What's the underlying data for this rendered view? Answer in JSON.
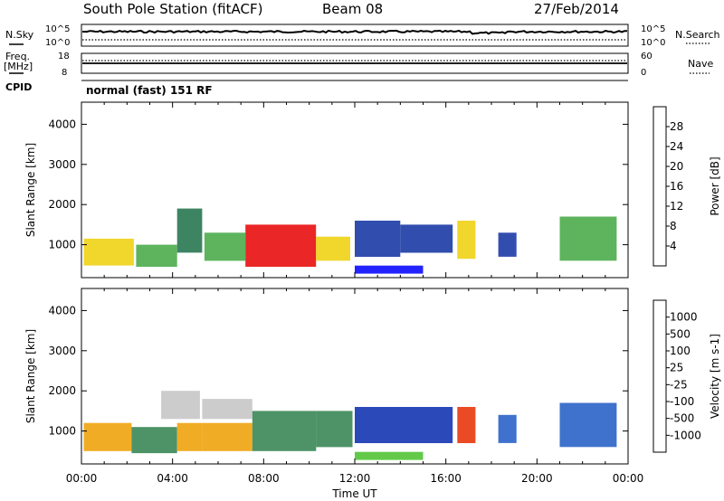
{
  "header": {
    "station": "South Pole Station (fitACF)",
    "beam": "Beam 08",
    "date": "27/Feb/2014"
  },
  "strips": {
    "nsky_label": "N.Sky",
    "nsky_ticks": [
      "10^5",
      "10^0"
    ],
    "nsearch_label": "N.Search",
    "nsearch_ticks": [
      "10^5",
      "10^0"
    ],
    "freq_label": "Freq.",
    "freq_unit": "[MHz]",
    "freq_ticks": [
      "18",
      "8"
    ],
    "nave_label": "Nave",
    "nave_ticks": [
      "60",
      "0"
    ],
    "cpid_label": "CPID",
    "cpid_value": "normal (fast) 151 RF"
  },
  "chart_data": [
    {
      "type": "heatmap",
      "name": "power",
      "ylabel": "Slant Range [km]",
      "ylim": [
        180,
        4550
      ],
      "yticks": [
        "1000",
        "2000",
        "3000",
        "4000"
      ],
      "xlim_hours": [
        0,
        24
      ],
      "colorbar_label": "Power [dB]",
      "colorbar_ticks": [
        "4",
        "8",
        "12",
        "16",
        "20",
        "24",
        "28"
      ],
      "colorbar_colors": [
        "#1010ff",
        "#1f3fa8",
        "#2d7a55",
        "#4fae4f",
        "#f0d21a",
        "#f08a14",
        "#e81414",
        "#ff1e1e"
      ],
      "patches": [
        {
          "t0": 0.1,
          "t1": 2.3,
          "r0": 480,
          "r1": 1150,
          "level": 4
        },
        {
          "t0": 2.4,
          "t1": 4.2,
          "r0": 450,
          "r1": 1000,
          "level": 3
        },
        {
          "t0": 4.2,
          "t1": 5.3,
          "r0": 800,
          "r1": 1900,
          "level": 2
        },
        {
          "t0": 5.4,
          "t1": 7.2,
          "r0": 600,
          "r1": 1300,
          "level": 3
        },
        {
          "t0": 7.2,
          "t1": 10.3,
          "r0": 450,
          "r1": 1500,
          "level": 6
        },
        {
          "t0": 10.3,
          "t1": 11.8,
          "r0": 600,
          "r1": 1200,
          "level": 4
        },
        {
          "t0": 12.0,
          "t1": 14.0,
          "r0": 700,
          "r1": 1600,
          "level": 1
        },
        {
          "t0": 12.0,
          "t1": 15.0,
          "r0": 280,
          "r1": 480,
          "level": 0
        },
        {
          "t0": 14.0,
          "t1": 16.3,
          "r0": 800,
          "r1": 1500,
          "level": 1
        },
        {
          "t0": 16.5,
          "t1": 17.3,
          "r0": 650,
          "r1": 1600,
          "level": 4
        },
        {
          "t0": 18.3,
          "t1": 19.1,
          "r0": 700,
          "r1": 1300,
          "level": 1
        },
        {
          "t0": 21.0,
          "t1": 23.5,
          "r0": 600,
          "r1": 1700,
          "level": 3
        }
      ]
    },
    {
      "type": "heatmap",
      "name": "velocity",
      "xlabel": "Time UT",
      "ylabel": "Slant Range [km]",
      "ylim": [
        180,
        4550
      ],
      "yticks": [
        "1000",
        "2000",
        "3000",
        "4000"
      ],
      "xticks": [
        "00:00",
        "04:00",
        "08:00",
        "12:00",
        "16:00",
        "20:00",
        "00:00"
      ],
      "xlim_hours": [
        0,
        24
      ],
      "colorbar_label": "Velocity [m s-1]",
      "colorbar_ticks": [
        "1000",
        "500",
        "100",
        "25",
        "-25",
        "-100",
        "-500",
        "-1000"
      ],
      "colorbar_colors": [
        "#1a3ab4",
        "#2e66c8",
        "#3e8a5a",
        "#56c43a",
        "#c8c8c8",
        "#f0a514",
        "#f07812",
        "#e83c12",
        "#ff1414"
      ],
      "patches": [
        {
          "t0": 0.1,
          "t1": 2.2,
          "r0": 500,
          "r1": 1200,
          "level": 5
        },
        {
          "t0": 2.2,
          "t1": 4.2,
          "r0": 450,
          "r1": 1100,
          "level": 2
        },
        {
          "t0": 3.5,
          "t1": 5.2,
          "r0": 1300,
          "r1": 2000,
          "level": 4
        },
        {
          "t0": 4.2,
          "t1": 5.3,
          "r0": 500,
          "r1": 1200,
          "level": 5
        },
        {
          "t0": 5.3,
          "t1": 7.5,
          "r0": 500,
          "r1": 1200,
          "level": 5
        },
        {
          "t0": 5.3,
          "t1": 7.5,
          "r0": 1300,
          "r1": 1800,
          "level": 4
        },
        {
          "t0": 7.5,
          "t1": 10.3,
          "r0": 500,
          "r1": 1500,
          "level": 2
        },
        {
          "t0": 10.3,
          "t1": 11.9,
          "r0": 600,
          "r1": 1500,
          "level": 2
        },
        {
          "t0": 12.0,
          "t1": 16.3,
          "r0": 700,
          "r1": 1600,
          "level": 0
        },
        {
          "t0": 12.0,
          "t1": 15.0,
          "r0": 280,
          "r1": 480,
          "level": 3
        },
        {
          "t0": 16.5,
          "t1": 17.3,
          "r0": 700,
          "r1": 1600,
          "level": 7
        },
        {
          "t0": 18.3,
          "t1": 19.1,
          "r0": 700,
          "r1": 1400,
          "level": 1
        },
        {
          "t0": 21.0,
          "t1": 23.5,
          "r0": 600,
          "r1": 1700,
          "level": 1
        }
      ]
    }
  ]
}
